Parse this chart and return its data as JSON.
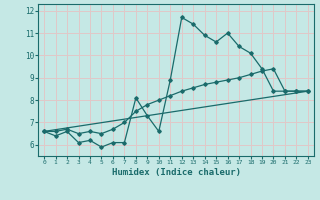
{
  "xlabel": "Humidex (Indice chaleur)",
  "ylabel": "",
  "x_ticks": [
    0,
    1,
    2,
    3,
    4,
    5,
    6,
    7,
    8,
    9,
    10,
    11,
    12,
    13,
    14,
    15,
    16,
    17,
    18,
    19,
    20,
    21,
    22,
    23
  ],
  "ylim": [
    5.5,
    12.3
  ],
  "xlim": [
    -0.5,
    23.5
  ],
  "background_color": "#c5e8e5",
  "grid_color": "#e0c8c8",
  "line_color": "#1a6b6b",
  "line1_x": [
    0,
    1,
    2,
    3,
    4,
    5,
    6,
    7,
    8,
    9,
    10,
    11,
    12,
    13,
    14,
    15,
    16,
    17,
    18,
    19,
    20,
    21,
    22,
    23
  ],
  "line1_y": [
    6.6,
    6.4,
    6.6,
    6.1,
    6.2,
    5.9,
    6.1,
    6.1,
    8.1,
    7.3,
    6.6,
    8.9,
    11.7,
    11.4,
    10.9,
    10.6,
    11.0,
    10.4,
    10.1,
    9.4,
    8.4,
    8.4,
    8.4,
    8.4
  ],
  "line2_x": [
    0,
    1,
    2,
    3,
    4,
    5,
    6,
    7,
    8,
    9,
    10,
    11,
    12,
    13,
    14,
    15,
    16,
    17,
    18,
    19,
    20,
    21,
    22,
    23
  ],
  "line2_y": [
    6.6,
    6.6,
    6.7,
    6.5,
    6.6,
    6.5,
    6.7,
    7.0,
    7.5,
    7.8,
    8.0,
    8.2,
    8.4,
    8.55,
    8.7,
    8.8,
    8.9,
    9.0,
    9.15,
    9.3,
    9.4,
    8.4,
    8.4,
    8.4
  ],
  "line3_x": [
    0,
    23
  ],
  "line3_y": [
    6.6,
    8.4
  ]
}
